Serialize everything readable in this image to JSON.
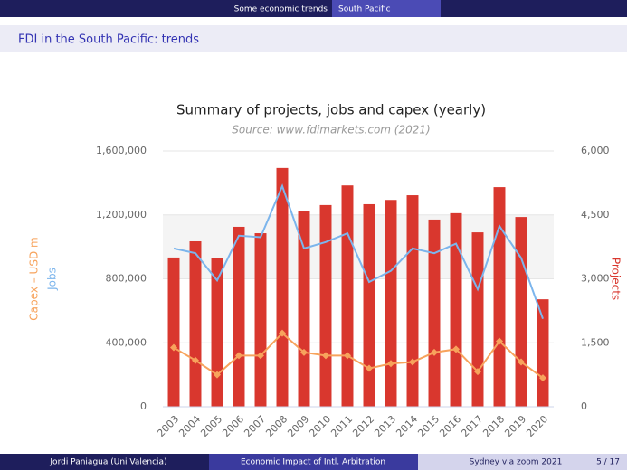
{
  "header": {
    "section": "Some economic trends",
    "subsection": "South Pacific"
  },
  "frame_title": "FDI in the South Pacific: trends",
  "footer": {
    "author": "Jordi Paniagua (Uni Valencia)",
    "title": "Economic Impact of Intl. Arbitration",
    "event": "Sydney via zoom 2021",
    "page": "5 / 17"
  },
  "chart_data": {
    "type": "bar",
    "title": "Summary of projects, jobs and capex (yearly)",
    "subtitle": "Source: www.fdimarkets.com (2021)",
    "categories": [
      "2003",
      "2004",
      "2005",
      "2006",
      "2007",
      "2008",
      "2009",
      "2010",
      "2011",
      "2012",
      "2013",
      "2014",
      "2015",
      "2016",
      "2017",
      "2018",
      "2019",
      "2020"
    ],
    "series": [
      {
        "name": "Projects",
        "type": "bar",
        "axis": "y2",
        "color": "#d9372e",
        "values": [
          3500,
          3880,
          3480,
          4220,
          4070,
          5600,
          4580,
          4730,
          5190,
          4750,
          4850,
          4960,
          4390,
          4540,
          4090,
          5150,
          4450,
          2520
        ]
      },
      {
        "name": "Jobs",
        "type": "line",
        "axis": "y",
        "color": "#7cb5ec",
        "values": [
          990000,
          960000,
          790000,
          1070000,
          1060000,
          1380000,
          990000,
          1030000,
          1085000,
          780000,
          850000,
          990000,
          960000,
          1020000,
          735000,
          1130000,
          930000,
          550000
        ]
      },
      {
        "name": "Capex – USD m",
        "type": "line",
        "axis": "y",
        "color": "#f7a35c",
        "values": [
          370000,
          290000,
          200000,
          320000,
          320000,
          460000,
          340000,
          320000,
          320000,
          240000,
          270000,
          280000,
          340000,
          360000,
          220000,
          410000,
          280000,
          180000
        ]
      }
    ],
    "ylim": [
      0,
      1600000
    ],
    "yticks": [
      0,
      {
        "value": 400000,
        "label": "400,000"
      },
      {
        "value": 800000,
        "label": "800,000"
      },
      {
        "value": 1200000,
        "label": "1,200,000"
      },
      {
        "value": 1600000,
        "label": "1,600,000"
      }
    ],
    "y2lim": [
      0,
      6000
    ],
    "y2ticks": [
      0,
      {
        "value": 1500,
        "label": "1,500"
      },
      {
        "value": 3000,
        "label": "3,000"
      },
      {
        "value": 4500,
        "label": "4,500"
      },
      {
        "value": 6000,
        "label": "6,000"
      }
    ],
    "grid": true
  }
}
